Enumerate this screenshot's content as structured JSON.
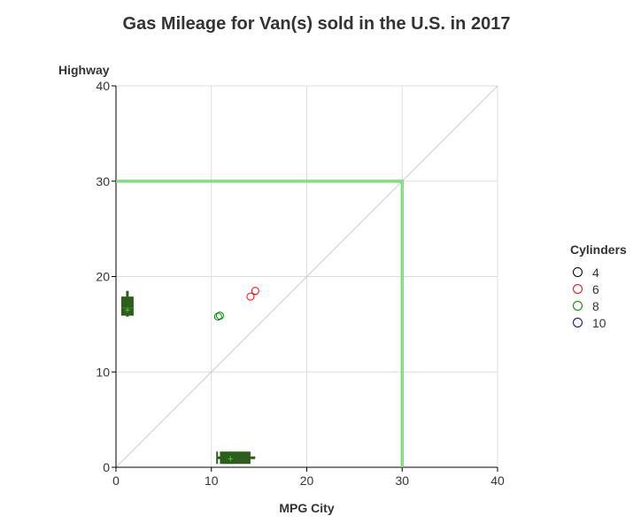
{
  "chart_data": {
    "type": "scatter",
    "title": "Gas Mileage for Van(s) sold in the U.S. in 2017",
    "xlabel": "MPG City",
    "ylabel": "Highway",
    "xlim": [
      0,
      40
    ],
    "ylim": [
      0,
      40
    ],
    "xticks": [
      0,
      10,
      20,
      30,
      40
    ],
    "yticks": [
      0,
      10,
      20,
      30,
      40
    ],
    "grid": true,
    "diagonal_line": true,
    "reference_lines": {
      "x": 30,
      "y": 30,
      "color": "#33dd33"
    },
    "legend": {
      "title": "Cylinders",
      "placement": "right",
      "entries": [
        {
          "label": "4",
          "color": "#000000"
        },
        {
          "label": "6",
          "color": "#ff0000"
        },
        {
          "label": "8",
          "color": "#008000"
        },
        {
          "label": "10",
          "color": "#0000aa"
        }
      ]
    },
    "series": [
      {
        "name": "6",
        "color": "#ff0000",
        "points": [
          {
            "x": 14.1,
            "y": 17.9
          },
          {
            "x": 14.6,
            "y": 18.5
          }
        ]
      },
      {
        "name": "8",
        "color": "#008000",
        "points": [
          {
            "x": 10.7,
            "y": 15.8
          },
          {
            "x": 10.9,
            "y": 15.9
          }
        ]
      }
    ],
    "x_boxplot": {
      "min": 10.6,
      "q1": 10.9,
      "median": 11.0,
      "mean": 12.0,
      "q3": 14.1,
      "max": 14.6,
      "color": "#2e5e1e"
    },
    "y_boxplot": {
      "min": 15.8,
      "q1": 15.9,
      "median": 16.7,
      "mean": 16.5,
      "q3": 17.9,
      "max": 18.5,
      "color": "#2e5e1e"
    }
  }
}
